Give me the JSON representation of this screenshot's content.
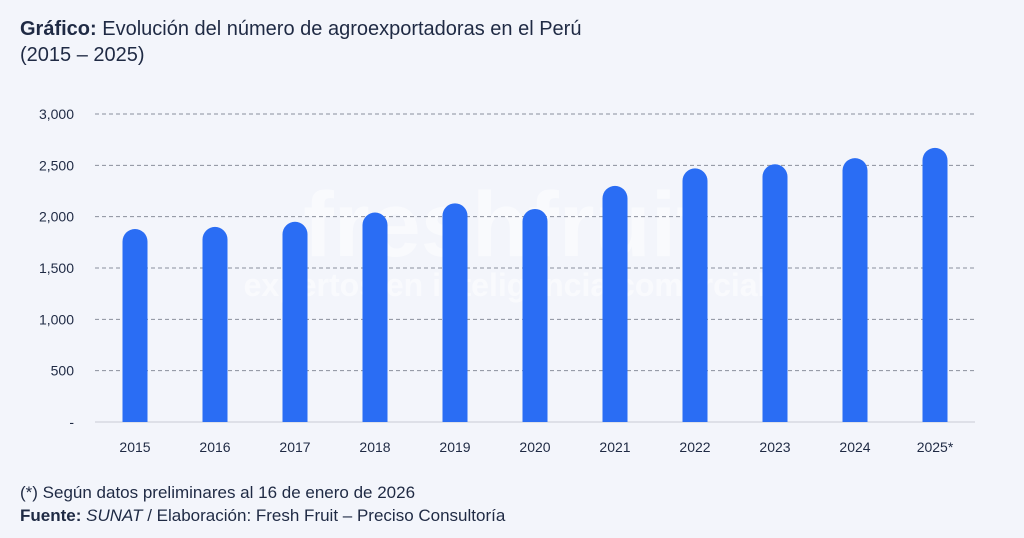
{
  "header": {
    "title_prefix": "Gráfico:",
    "title": "Evolución del número de agroexportadoras en el Perú",
    "subtitle": "(2015 – 2025)"
  },
  "watermark": {
    "brand": "freshfruit",
    "tagline": "expertos en inteligencia comercial"
  },
  "colors": {
    "bar": "#2a6df4",
    "grid": "#8a8f9c",
    "text": "#1f2a44",
    "background": "#f3f5fb"
  },
  "chart_data": {
    "type": "bar",
    "title": "",
    "xlabel": "",
    "ylabel": "",
    "categories": [
      "2015",
      "2016",
      "2017",
      "2018",
      "2019",
      "2020",
      "2021",
      "2022",
      "2023",
      "2024",
      "2025*"
    ],
    "values": [
      1880,
      1900,
      1950,
      2040,
      2130,
      2075,
      2300,
      2470,
      2510,
      2570,
      2670
    ],
    "ylim": [
      0,
      3000
    ],
    "yticks": [
      0,
      500,
      1000,
      1500,
      2000,
      2500,
      3000
    ],
    "ytick_labels": [
      "-",
      "500",
      "1,000",
      "1,500",
      "2,000",
      "2,500",
      "3,000"
    ],
    "grid": true,
    "grid_style": "dashed",
    "legend": "none"
  },
  "footer": {
    "note": "(*) Según datos preliminares al 16 de enero de 2026",
    "source_label": "Fuente:",
    "source_value": "SUNAT",
    "separator": " / ",
    "elaboration": "Elaboración: Fresh Fruit – Preciso Consultoría"
  }
}
